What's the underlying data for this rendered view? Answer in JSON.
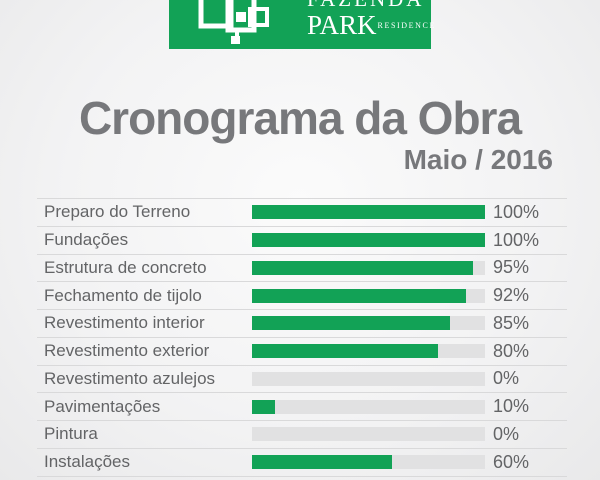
{
  "brand": {
    "name_line1": "FAZENDA",
    "name_line2": "PARK",
    "name_suffix": "RESIDENCE",
    "banner_color": "#12a256"
  },
  "header": {
    "title": "Cronograma da Obra",
    "subtitle": "Maio / 2016"
  },
  "chart_data": {
    "type": "bar",
    "orientation": "horizontal",
    "title": "Cronograma da Obra",
    "subtitle": "Maio / 2016",
    "categories": [
      "Preparo do Terreno",
      "Fundações",
      "Estrutura de concreto",
      "Fechamento de tijolo",
      "Revestimento interior",
      "Revestimento exterior",
      "Revestimento azulejos",
      "Pavimentações",
      "Pintura",
      "Instalações"
    ],
    "values": [
      100,
      100,
      95,
      92,
      85,
      80,
      0,
      10,
      0,
      60
    ],
    "value_suffix": "%",
    "xlim": [
      0,
      100
    ],
    "grid": false,
    "legend": false,
    "bar_color": "#12a256",
    "track_color": "#e1e1e2"
  }
}
